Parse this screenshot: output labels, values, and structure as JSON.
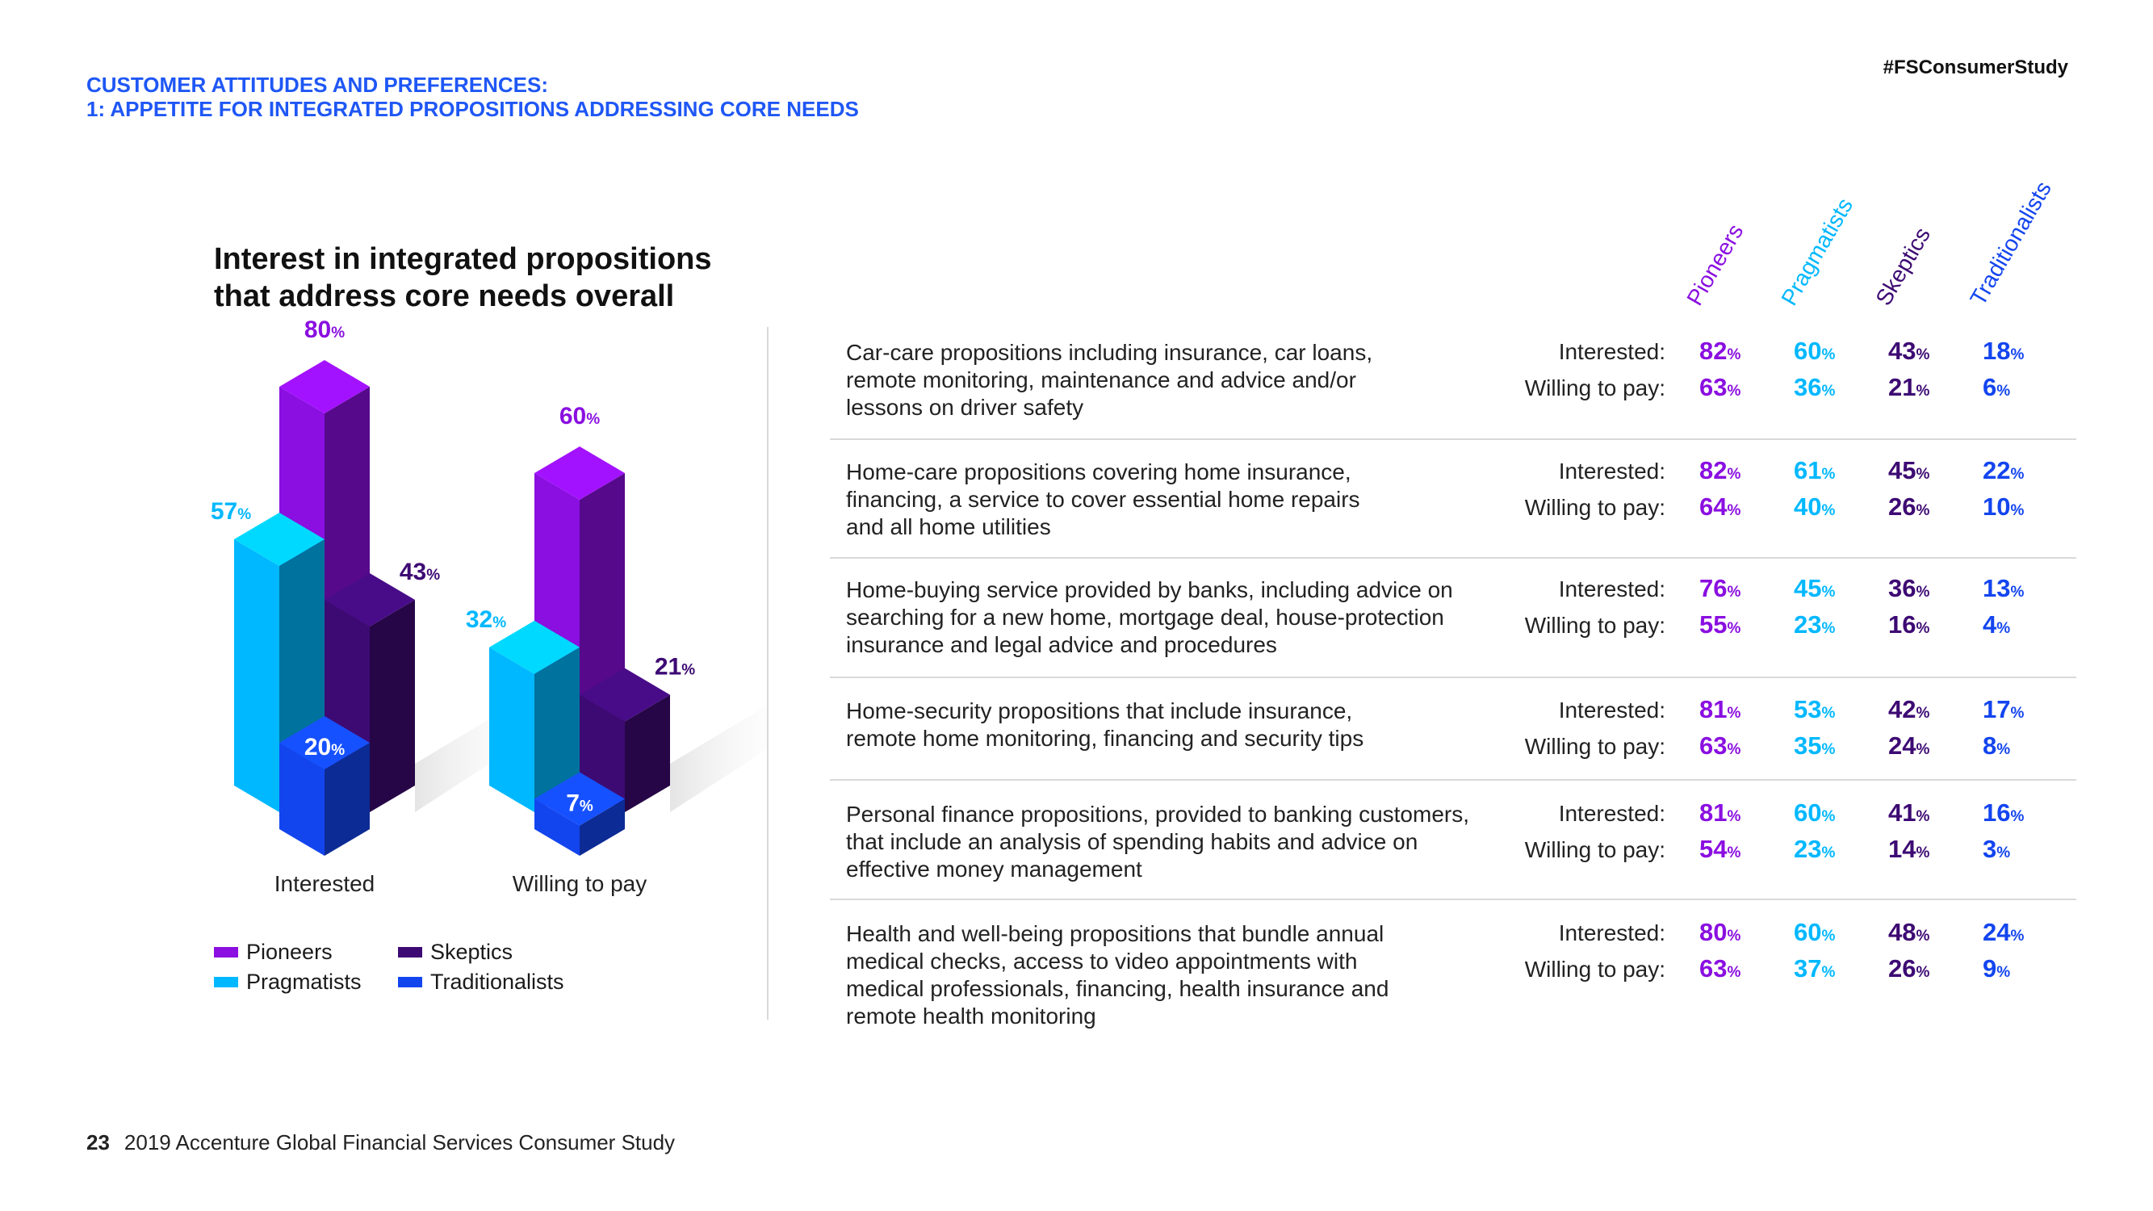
{
  "header": {
    "line1": "CUSTOMER ATTITUDES AND PREFERENCES:",
    "line2": "1: APPETITE FOR INTEGRATED PROPOSITIONS ADDRESSING CORE NEEDS",
    "hashtag": "#FSConsumerStudy"
  },
  "colors": {
    "pioneers": "#8a0fe0",
    "pragmatists": "#00b8ff",
    "skeptics": "#3d0a73",
    "traditionalists": "#1345ef"
  },
  "chart_data": {
    "type": "bar",
    "title": "Interest in integrated propositions that address core needs overall",
    "title_line1": "Interest in integrated propositions",
    "title_line2": "that address core needs overall",
    "categories": [
      "Interested",
      "Willing to pay"
    ],
    "series": [
      {
        "name": "Pioneers",
        "values": [
          80,
          60
        ]
      },
      {
        "name": "Pragmatists",
        "values": [
          57,
          32
        ]
      },
      {
        "name": "Skeptics",
        "values": [
          43,
          21
        ]
      },
      {
        "name": "Traditionalists",
        "values": [
          20,
          7
        ]
      }
    ],
    "unit": "%",
    "ylim": [
      0,
      80
    ]
  },
  "legend": [
    "Pioneers",
    "Pragmatists",
    "Skeptics",
    "Traditionalists"
  ],
  "table": {
    "columns": [
      "Pioneers",
      "Pragmatists",
      "Skeptics",
      "Traditionalists"
    ],
    "row_labels": {
      "interested": "Interested:",
      "willing": "Willing to pay:"
    },
    "rows": [
      {
        "lines": [
          "Car-care propositions including insurance, car loans,",
          "remote monitoring, maintenance and advice and/or",
          "lessons on driver safety"
        ],
        "interested": [
          "82",
          "60",
          "43",
          "18"
        ],
        "willing": [
          "63",
          "36",
          "21",
          "6"
        ]
      },
      {
        "lines": [
          "Home-care propositions covering home insurance,",
          "financing, a service to cover essential home repairs",
          "and all home utilities"
        ],
        "interested": [
          "82",
          "61",
          "45",
          "22"
        ],
        "willing": [
          "64",
          "40",
          "26",
          "10"
        ]
      },
      {
        "lines": [
          "Home-buying service provided by banks, including advice on",
          "searching for a new home, mortgage deal, house-protection",
          "insurance and legal advice and procedures"
        ],
        "interested": [
          "76",
          "45",
          "36",
          "13"
        ],
        "willing": [
          "55",
          "23",
          "16",
          "4"
        ]
      },
      {
        "lines": [
          "Home-security propositions that include insurance,",
          "remote home monitoring, financing and security tips"
        ],
        "interested": [
          "81",
          "53",
          "42",
          "17"
        ],
        "willing": [
          "63",
          "35",
          "24",
          "8"
        ]
      },
      {
        "lines": [
          "Personal finance propositions, provided to banking customers,",
          "that include an analysis of spending habits and advice on",
          "effective money management"
        ],
        "interested": [
          "81",
          "60",
          "41",
          "16"
        ],
        "willing": [
          "54",
          "23",
          "14",
          "3"
        ]
      },
      {
        "lines": [
          "Health and well-being propositions that bundle annual",
          "medical checks, access to video appointments with",
          "medical professionals, financing, health insurance and",
          "remote health monitoring"
        ],
        "interested": [
          "80",
          "60",
          "48",
          "24"
        ],
        "willing": [
          "63",
          "37",
          "26",
          "9"
        ]
      }
    ]
  },
  "footer": {
    "page": "23",
    "text": "2019 Accenture Global Financial Services Consumer Study"
  }
}
